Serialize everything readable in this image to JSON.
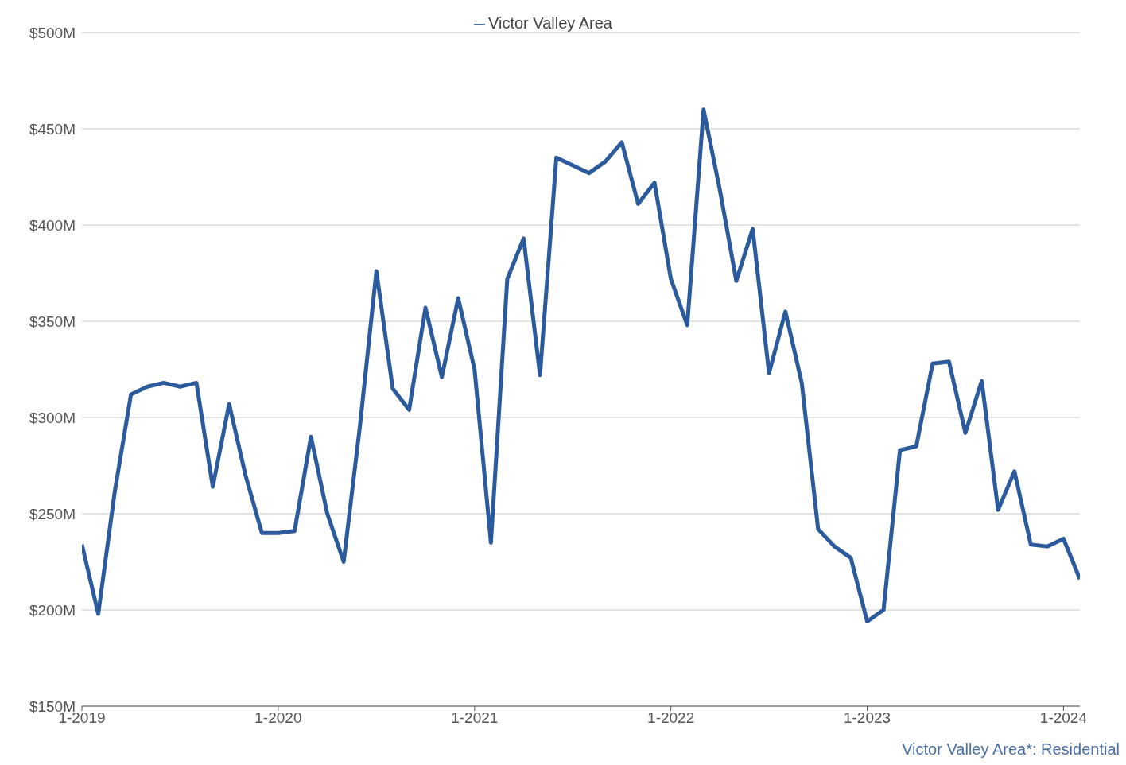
{
  "chart_data": {
    "type": "line",
    "x": [
      "2019-01",
      "2019-02",
      "2019-03",
      "2019-04",
      "2019-05",
      "2019-06",
      "2019-07",
      "2019-08",
      "2019-09",
      "2019-10",
      "2019-11",
      "2019-12",
      "2020-01",
      "2020-02",
      "2020-03",
      "2020-04",
      "2020-05",
      "2020-06",
      "2020-07",
      "2020-08",
      "2020-09",
      "2020-10",
      "2020-11",
      "2020-12",
      "2021-01",
      "2021-02",
      "2021-03",
      "2021-04",
      "2021-05",
      "2021-06",
      "2021-07",
      "2021-08",
      "2021-09",
      "2021-10",
      "2021-11",
      "2021-12",
      "2022-01",
      "2022-02",
      "2022-03",
      "2022-04",
      "2022-05",
      "2022-06",
      "2022-07",
      "2022-08",
      "2022-09",
      "2022-10",
      "2022-11",
      "2022-12",
      "2023-01",
      "2023-02",
      "2023-03",
      "2023-04",
      "2023-05",
      "2023-06",
      "2023-07",
      "2023-08",
      "2023-09",
      "2023-10",
      "2023-11",
      "2023-12",
      "2024-01",
      "2024-02"
    ],
    "series": [
      {
        "name": "Victor Valley Area",
        "color": "#2b5b9c",
        "values": [
          234,
          198,
          261,
          312,
          316,
          318,
          316,
          318,
          264,
          307,
          270,
          240,
          240,
          241,
          290,
          250,
          225,
          296,
          376,
          315,
          304,
          357,
          321,
          362,
          325,
          235,
          372,
          393,
          322,
          435,
          431,
          427,
          433,
          443,
          411,
          422,
          372,
          348,
          460,
          418,
          371,
          398,
          323,
          355,
          318,
          242,
          233,
          227,
          194,
          200,
          283,
          285,
          328,
          329,
          292,
          319,
          252,
          272,
          234,
          233,
          237,
          216
        ]
      }
    ],
    "xlim": [
      "2019-01",
      "2024-02"
    ],
    "xticks": [
      {
        "value": "2019-01",
        "label": "1-2019"
      },
      {
        "value": "2020-01",
        "label": "1-2020"
      },
      {
        "value": "2021-01",
        "label": "1-2021"
      },
      {
        "value": "2022-01",
        "label": "1-2022"
      },
      {
        "value": "2023-01",
        "label": "1-2023"
      },
      {
        "value": "2024-01",
        "label": "1-2024"
      }
    ],
    "ylim": [
      150,
      500
    ],
    "yticks": [
      {
        "value": 150,
        "label": "$150M"
      },
      {
        "value": 200,
        "label": "$200M"
      },
      {
        "value": 250,
        "label": "$250M"
      },
      {
        "value": 300,
        "label": "$300M"
      },
      {
        "value": 350,
        "label": "$350M"
      },
      {
        "value": 400,
        "label": "$400M"
      },
      {
        "value": 450,
        "label": "$450M"
      },
      {
        "value": 500,
        "label": "$500M"
      }
    ],
    "grid": "y",
    "legend": "top",
    "marker": "none",
    "line_style": "solid",
    "annotations": [
      "Victor Valley Area*: Residential"
    ]
  }
}
